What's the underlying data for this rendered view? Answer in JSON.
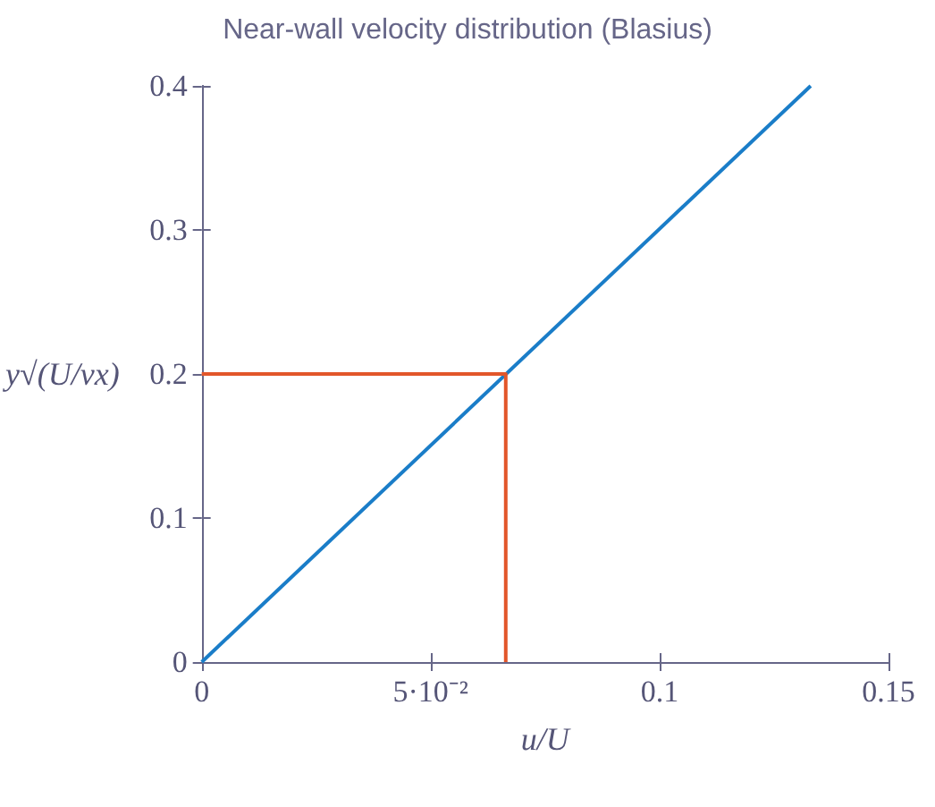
{
  "chart_data": {
    "type": "line",
    "title": "Near-wall velocity distribution (Blasius)",
    "xlabel": "u/U",
    "ylabel": "y√(U/νx)",
    "xlim": [
      0,
      0.15
    ],
    "ylim": [
      0,
      0.4
    ],
    "xticks": [
      0,
      {
        "value": 0.05,
        "label": "5·10⁻²"
      },
      0.1,
      0.15
    ],
    "yticks": [
      0,
      0.1,
      0.2,
      0.3,
      0.4
    ],
    "series": [
      {
        "color": "#1a7dc8",
        "x": [
          0,
          0.133
        ],
        "values": [
          0,
          0.4
        ]
      },
      {
        "color": "#e2562a",
        "x": [
          0,
          0.0664,
          0.0664
        ],
        "values": [
          0.2,
          0.2,
          0
        ]
      }
    ]
  }
}
